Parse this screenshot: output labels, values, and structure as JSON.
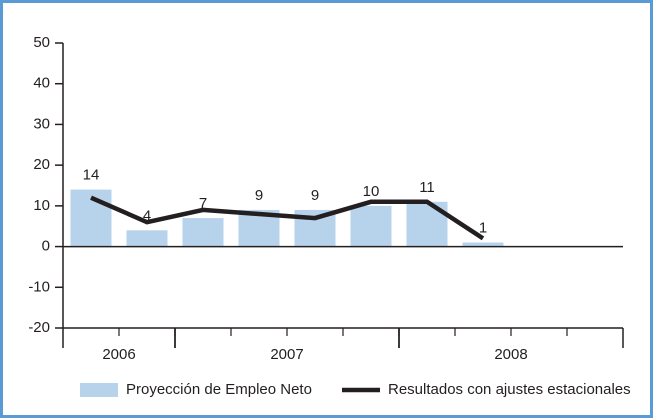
{
  "chart_data": {
    "type": "bar_line",
    "categories": [
      null,
      null,
      null,
      null,
      null,
      null,
      null,
      null,
      null,
      null
    ],
    "groups": [
      {
        "label": "2006",
        "start": 0,
        "end": 1
      },
      {
        "label": "2007",
        "start": 2,
        "end": 5
      },
      {
        "label": "2008",
        "start": 6,
        "end": 9
      }
    ],
    "series": [
      {
        "name": "Proyección de Empleo Neto",
        "type": "bar",
        "color": "#b7d3ec",
        "values": [
          14,
          4,
          7,
          9,
          9,
          10,
          11,
          1,
          null,
          null
        ]
      },
      {
        "name": "Resultados con ajustes estacionales",
        "type": "line",
        "color": "#231f20",
        "values": [
          12,
          6,
          9,
          8,
          7,
          11,
          11,
          2,
          null,
          null
        ]
      }
    ],
    "ylim": [
      -20,
      50
    ],
    "yticks": [
      -20,
      -10,
      0,
      10,
      20,
      30,
      40,
      50
    ],
    "legend": "bottom"
  }
}
